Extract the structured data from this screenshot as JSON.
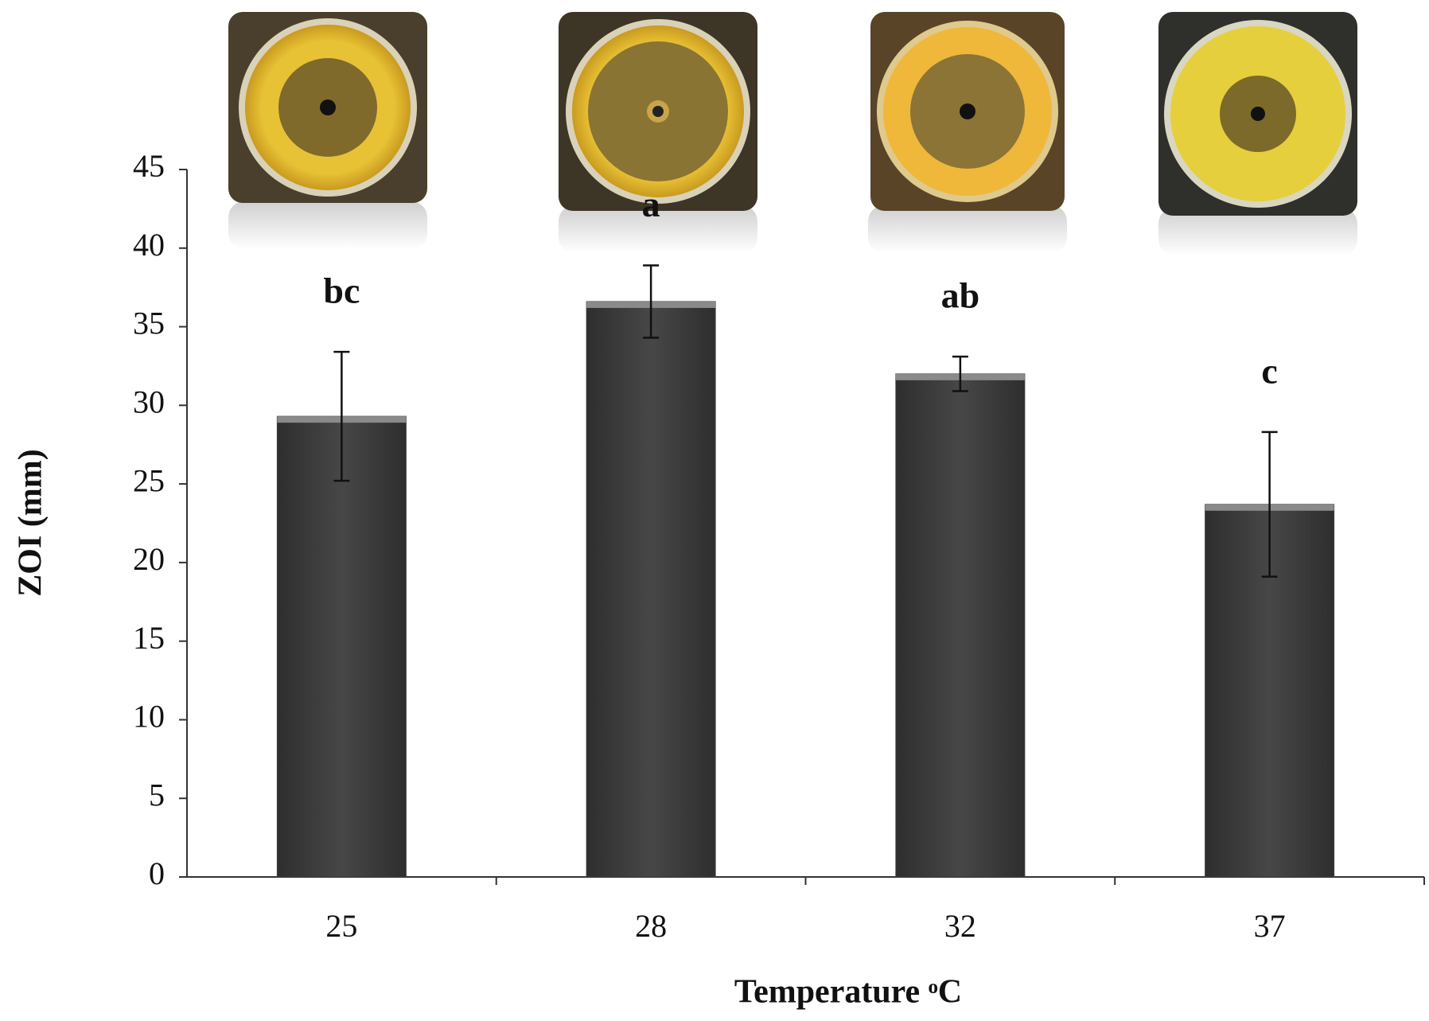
{
  "chart_data": {
    "type": "bar",
    "x_label": "Temperature ᵒC",
    "y_label": "ZOI (mm)",
    "categories": [
      "25",
      "28",
      "32",
      "37"
    ],
    "values": [
      29.3,
      36.6,
      32.0,
      23.7
    ],
    "errors": [
      4.1,
      2.3,
      1.1,
      4.6
    ],
    "annotations": [
      "bc",
      "a",
      "ab",
      "c"
    ],
    "color": "#3f3f3f",
    "ylim": [
      0,
      45
    ],
    "yticks": [
      0,
      5,
      10,
      15,
      20,
      25,
      30,
      35,
      40,
      45
    ],
    "grid": false
  }
}
